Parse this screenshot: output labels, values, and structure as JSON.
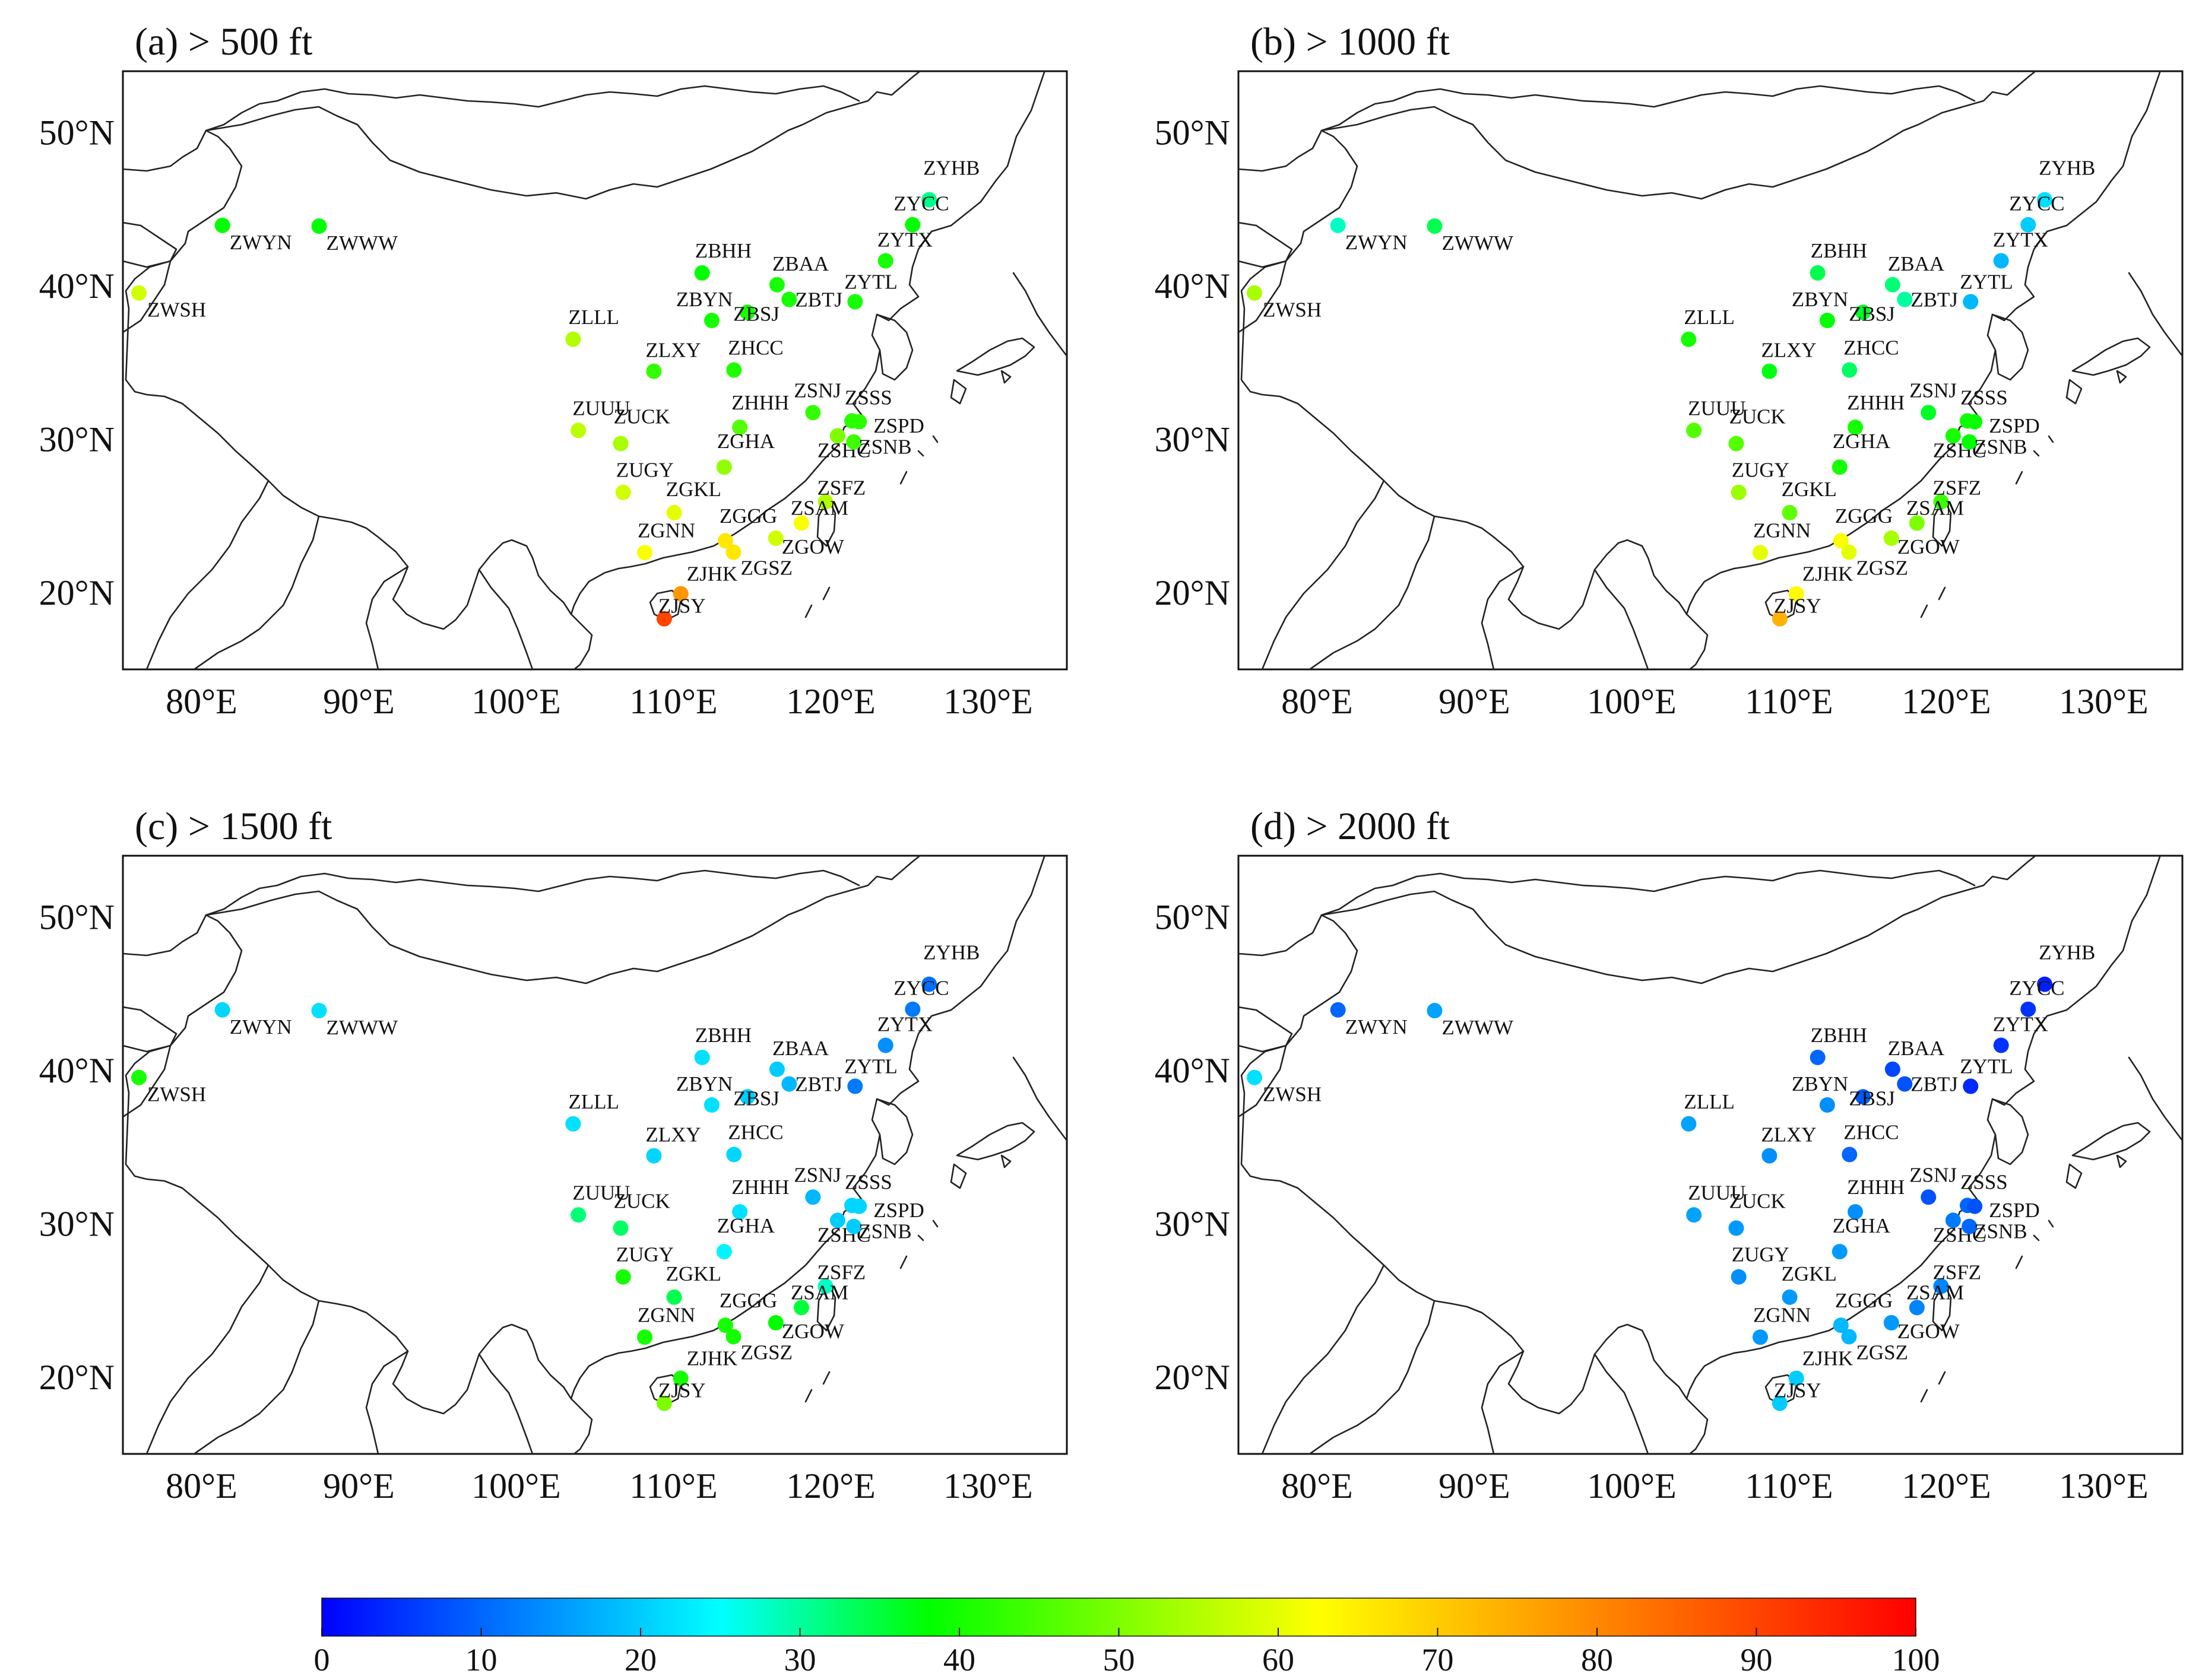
{
  "panels": [
    {
      "id": "a",
      "title": "(a) > 500 ft",
      "values": {
        "ZYHB": 31,
        "ZYCC": 38,
        "ZYTX": 40,
        "ZBAA": 40,
        "ZBTJ": 40,
        "ZYTL": 40,
        "ZBHH": 38,
        "ZBYN": 40,
        "ZBSJ": 40,
        "ZWYN": 38,
        "ZWWW": 38,
        "ZWSH": 58,
        "ZLLL": 55,
        "ZLXY": 43,
        "ZHCC": 41,
        "ZSNJ": 43,
        "ZSSS": 42,
        "ZSPD": 42,
        "ZSHC": 50,
        "ZSNB": 44,
        "ZUUU": 56,
        "ZUCK": 54,
        "ZHHH": 46,
        "ZGHA": 52,
        "ZUGY": 58,
        "ZSFZ": 55,
        "ZSAM": 62,
        "ZGKL": 60,
        "ZGNN": 62,
        "ZGGG": 66,
        "ZGOW": 58,
        "ZGSZ": 66,
        "ZJHK": 78,
        "ZJSY": 90
      }
    },
    {
      "id": "b",
      "title": "(b) > 1000 ft",
      "values": {
        "ZYHB": 22,
        "ZYCC": 20,
        "ZYTX": 18,
        "ZBAA": 32,
        "ZBTJ": 30,
        "ZYTL": 18,
        "ZBHH": 34,
        "ZBYN": 38,
        "ZBSJ": 36,
        "ZWYN": 28,
        "ZWWW": 34,
        "ZWSH": 54,
        "ZLLL": 40,
        "ZLXY": 37,
        "ZHCC": 33,
        "ZSNJ": 36,
        "ZSSS": 39,
        "ZSPD": 39,
        "ZSHC": 40,
        "ZSNB": 38,
        "ZUUU": 46,
        "ZUCK": 46,
        "ZHHH": 40,
        "ZGHA": 40,
        "ZUGY": 53,
        "ZSFZ": 44,
        "ZSAM": 50,
        "ZGKL": 47,
        "ZGNN": 60,
        "ZGGG": 62,
        "ZGOW": 54,
        "ZGSZ": 60,
        "ZJHK": 63,
        "ZJSY": 74
      }
    },
    {
      "id": "c",
      "title": "(c) > 1500 ft",
      "values": {
        "ZYHB": 11,
        "ZYCC": 12,
        "ZYTX": 14,
        "ZBAA": 20,
        "ZBTJ": 18,
        "ZYTL": 12,
        "ZBHH": 22,
        "ZBYN": 22,
        "ZBSJ": 20,
        "ZWYN": 21,
        "ZWWW": 22,
        "ZWSH": 40,
        "ZLLL": 22,
        "ZLXY": 21,
        "ZHCC": 21,
        "ZSNJ": 18,
        "ZSSS": 21,
        "ZSPD": 21,
        "ZSHC": 20,
        "ZSNB": 20,
        "ZUUU": 32,
        "ZUCK": 33,
        "ZHHH": 22,
        "ZGHA": 24,
        "ZUGY": 40,
        "ZSFZ": 28,
        "ZSAM": 35,
        "ZGKL": 34,
        "ZGNN": 40,
        "ZGGG": 40,
        "ZGOW": 38,
        "ZGSZ": 40,
        "ZJHK": 40,
        "ZJSY": 50
      }
    },
    {
      "id": "d",
      "title": "(d) > 2000 ft",
      "values": {
        "ZYHB": 3,
        "ZYCC": 5,
        "ZYTX": 5,
        "ZBAA": 7,
        "ZBTJ": 8,
        "ZYTL": 4,
        "ZBHH": 10,
        "ZBYN": 14,
        "ZBSJ": 9,
        "ZWYN": 10,
        "ZWWW": 16,
        "ZWSH": 22,
        "ZLLL": 16,
        "ZLXY": 14,
        "ZHCC": 10,
        "ZSNJ": 8,
        "ZSSS": 10,
        "ZSPD": 8,
        "ZSHC": 12,
        "ZSNB": 10,
        "ZUUU": 16,
        "ZUCK": 15,
        "ZHHH": 14,
        "ZGHA": 15,
        "ZUGY": 14,
        "ZSFZ": 13,
        "ZSAM": 13,
        "ZGKL": 15,
        "ZGNN": 15,
        "ZGGG": 18,
        "ZGOW": 15,
        "ZGSZ": 18,
        "ZJHK": 20,
        "ZJSY": 20
      }
    }
  ],
  "stations": [
    {
      "code": "ZYHB",
      "lon": 126.25,
      "lat": 45.62
    },
    {
      "code": "ZYCC",
      "lon": 125.2,
      "lat": 43.99
    },
    {
      "code": "ZYTX",
      "lon": 123.48,
      "lat": 41.64
    },
    {
      "code": "ZBAA",
      "lon": 116.58,
      "lat": 40.08
    },
    {
      "code": "ZBTJ",
      "lon": 117.35,
      "lat": 39.12
    },
    {
      "code": "ZYTL",
      "lon": 121.54,
      "lat": 38.97
    },
    {
      "code": "ZBHH",
      "lon": 111.82,
      "lat": 40.85
    },
    {
      "code": "ZBYN",
      "lon": 112.43,
      "lat": 37.75
    },
    {
      "code": "ZBSJ",
      "lon": 114.7,
      "lat": 38.28
    },
    {
      "code": "ZWYN",
      "lon": 81.33,
      "lat": 43.95
    },
    {
      "code": "ZWWW",
      "lon": 87.47,
      "lat": 43.9
    },
    {
      "code": "ZWSH",
      "lon": 76.02,
      "lat": 39.54
    },
    {
      "code": "ZLLL",
      "lon": 103.62,
      "lat": 36.52
    },
    {
      "code": "ZLXY",
      "lon": 108.75,
      "lat": 34.44
    },
    {
      "code": "ZHCC",
      "lon": 113.84,
      "lat": 34.52
    },
    {
      "code": "ZSNJ",
      "lon": 118.86,
      "lat": 31.74
    },
    {
      "code": "ZSSS",
      "lon": 121.34,
      "lat": 31.2
    },
    {
      "code": "ZSPD",
      "lon": 121.8,
      "lat": 31.14
    },
    {
      "code": "ZSHC",
      "lon": 120.43,
      "lat": 30.23
    },
    {
      "code": "ZSNB",
      "lon": 121.46,
      "lat": 29.83
    },
    {
      "code": "ZUUU",
      "lon": 103.95,
      "lat": 30.58
    },
    {
      "code": "ZUCK",
      "lon": 106.64,
      "lat": 29.72
    },
    {
      "code": "ZHHH",
      "lon": 114.21,
      "lat": 30.78
    },
    {
      "code": "ZGHA",
      "lon": 113.22,
      "lat": 28.19
    },
    {
      "code": "ZUGY",
      "lon": 106.8,
      "lat": 26.54
    },
    {
      "code": "ZSFZ",
      "lon": 119.66,
      "lat": 25.93
    },
    {
      "code": "ZSAM",
      "lon": 118.13,
      "lat": 24.54
    },
    {
      "code": "ZGKL",
      "lon": 110.04,
      "lat": 25.22
    },
    {
      "code": "ZGNN",
      "lon": 108.17,
      "lat": 22.61
    },
    {
      "code": "ZGGG",
      "lon": 113.3,
      "lat": 23.39
    },
    {
      "code": "ZGOW",
      "lon": 116.5,
      "lat": 23.55
    },
    {
      "code": "ZGSZ",
      "lon": 113.81,
      "lat": 22.64
    },
    {
      "code": "ZJHK",
      "lon": 110.46,
      "lat": 19.93
    },
    {
      "code": "ZJSY",
      "lon": 109.41,
      "lat": 18.3
    }
  ],
  "axes": {
    "lon_range": [
      75,
      135
    ],
    "lat_range": [
      15,
      54
    ],
    "lon_ticks": [
      "80°E",
      "90°E",
      "100°E",
      "110°E",
      "120°E",
      "130°E"
    ],
    "lat_ticks": [
      "20°N",
      "30°N",
      "40°N",
      "50°N"
    ]
  },
  "colorbar": {
    "min": 0,
    "max": 100,
    "tick_labels": [
      "0",
      "10",
      "20",
      "30",
      "40",
      "50",
      "60",
      "70",
      "80",
      "90",
      "100"
    ],
    "colors": [
      "#0000ff",
      "#00ffff",
      "#00ff00",
      "#ffff00",
      "#ff0000"
    ]
  }
}
